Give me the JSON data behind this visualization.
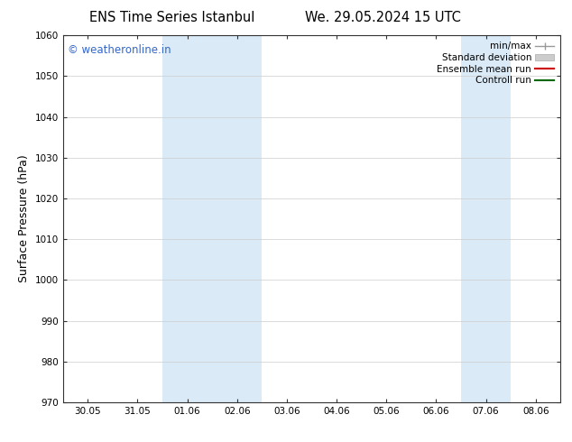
{
  "title_left": "ENS Time Series Istanbul",
  "title_right": "We. 29.05.2024 15 UTC",
  "ylabel": "Surface Pressure (hPa)",
  "ylim": [
    970,
    1060
  ],
  "yticks": [
    970,
    980,
    990,
    1000,
    1010,
    1020,
    1030,
    1040,
    1050,
    1060
  ],
  "xtick_labels": [
    "30.05",
    "31.05",
    "01.06",
    "02.06",
    "03.06",
    "04.06",
    "05.06",
    "06.06",
    "07.06",
    "08.06"
  ],
  "xtick_positions": [
    0,
    1,
    2,
    3,
    4,
    5,
    6,
    7,
    8,
    9
  ],
  "xlim": [
    -0.5,
    9.5
  ],
  "shaded_bands": [
    {
      "x_start": 1.5,
      "x_end": 3.5,
      "color": "#daeaf7"
    },
    {
      "x_start": 7.5,
      "x_end": 8.5,
      "color": "#daeaf7"
    }
  ],
  "watermark": "© weatheronline.in",
  "watermark_color": "#3366cc",
  "legend_entries": [
    {
      "label": "min/max",
      "color": "#999999",
      "lw": 1,
      "style": "minmax"
    },
    {
      "label": "Standard deviation",
      "color": "#cccccc",
      "lw": 8,
      "style": "fill"
    },
    {
      "label": "Ensemble mean run",
      "color": "#cc0000",
      "lw": 1.5,
      "style": "line"
    },
    {
      "label": "Controll run",
      "color": "#006600",
      "lw": 1.5,
      "style": "line"
    }
  ],
  "bg_color": "#ffffff",
  "tick_label_fontsize": 7.5,
  "axis_label_fontsize": 9,
  "title_fontsize": 10.5
}
